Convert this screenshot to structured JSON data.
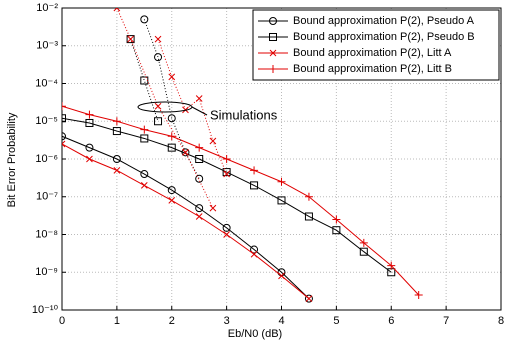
{
  "chart_data": {
    "type": "line",
    "xlabel": "Eb/N0 (dB)",
    "ylabel": "Bit Error Probability",
    "xlim": [
      0,
      8
    ],
    "xticks": [
      0,
      1,
      2,
      3,
      4,
      5,
      6,
      7,
      8
    ],
    "ylim": [
      1e-10,
      0.01
    ],
    "yscale": "log",
    "yticks": [
      {
        "value": 1e-10,
        "label": "10⁻¹⁰"
      },
      {
        "value": 1e-09,
        "label": "10⁻⁹"
      },
      {
        "value": 1e-08,
        "label": "10⁻⁸"
      },
      {
        "value": 1e-07,
        "label": "10⁻⁷"
      },
      {
        "value": 1e-06,
        "label": "10⁻⁶"
      },
      {
        "value": 1e-05,
        "label": "10⁻⁵"
      },
      {
        "value": 0.0001,
        "label": "10⁻⁴"
      },
      {
        "value": 0.001,
        "label": "10⁻³"
      },
      {
        "value": 0.01,
        "label": "10⁻²"
      }
    ],
    "grid": true,
    "legend": "upper right",
    "annotation": "Simulations",
    "series": [
      {
        "name": "Bound approximation P(2), Pseudo A",
        "color": "#000000",
        "marker": "circle",
        "linestyle": "solid",
        "x": [
          0,
          0.5,
          1,
          1.5,
          2,
          2.5,
          3,
          3.5,
          4,
          4.5
        ],
        "values": [
          4e-06,
          2e-06,
          1e-06,
          4e-07,
          1.5e-07,
          5e-08,
          1.5e-08,
          4e-09,
          1e-09,
          2e-10
        ]
      },
      {
        "name": "Bound approximation P(2), Pseudo B",
        "color": "#000000",
        "marker": "square",
        "linestyle": "solid",
        "x": [
          0,
          0.5,
          1,
          1.5,
          2,
          2.5,
          3,
          3.5,
          4,
          4.5,
          5,
          5.5,
          6
        ],
        "values": [
          1.2e-05,
          9e-06,
          5.5e-06,
          3.5e-06,
          2e-06,
          1e-06,
          4.5e-07,
          2e-07,
          8e-08,
          3e-08,
          1.3e-08,
          3.5e-09,
          1e-09
        ]
      },
      {
        "name": "Bound approximation P(2), Litt A",
        "color": "#e00000",
        "marker": "x",
        "linestyle": "solid",
        "x": [
          0,
          0.5,
          1,
          1.5,
          2,
          2.5,
          3,
          3.5,
          4,
          4.5
        ],
        "values": [
          2.5e-06,
          1e-06,
          5e-07,
          2e-07,
          8e-08,
          3e-08,
          1e-08,
          3e-09,
          8e-10,
          2e-10
        ]
      },
      {
        "name": "Bound approximation P(2), Litt B",
        "color": "#e00000",
        "marker": "plus",
        "linestyle": "solid",
        "x": [
          0,
          0.5,
          1,
          1.5,
          2,
          2.5,
          3,
          3.5,
          4,
          4.5,
          5,
          5.5,
          6,
          6.5
        ],
        "values": [
          2.5e-05,
          1.5e-05,
          1e-05,
          6e-06,
          4e-06,
          2e-06,
          1e-06,
          5e-07,
          2.5e-07,
          1e-07,
          2.5e-08,
          6e-09,
          1.5e-09,
          2.5e-10
        ]
      },
      {
        "color": "#000000",
        "marker": "circle",
        "linestyle": "dotted",
        "x": [
          1.5,
          1.75,
          2,
          2.25,
          2.5
        ],
        "values": [
          0.005,
          0.0005,
          1.2e-05,
          1.5e-06,
          3e-07
        ]
      },
      {
        "color": "#000000",
        "marker": "square",
        "linestyle": "dotted",
        "x": [
          1.25,
          1.5,
          1.75
        ],
        "values": [
          0.0015,
          0.00012,
          1e-05
        ]
      },
      {
        "color": "#e00000",
        "marker": "x",
        "linestyle": "dotted",
        "x": [
          1,
          1.25,
          1.75,
          2.25,
          2.75
        ],
        "values": [
          0.01,
          0.0015,
          2.5e-05,
          1.5e-06,
          5e-08
        ]
      },
      {
        "color": "#e00000",
        "marker": "x",
        "linestyle": "dotted",
        "x": [
          1.75,
          2,
          2.25,
          2.5,
          2.75,
          3
        ],
        "values": [
          0.0015,
          0.00015,
          2e-05,
          4e-05,
          3e-06,
          4e-07
        ]
      }
    ]
  }
}
